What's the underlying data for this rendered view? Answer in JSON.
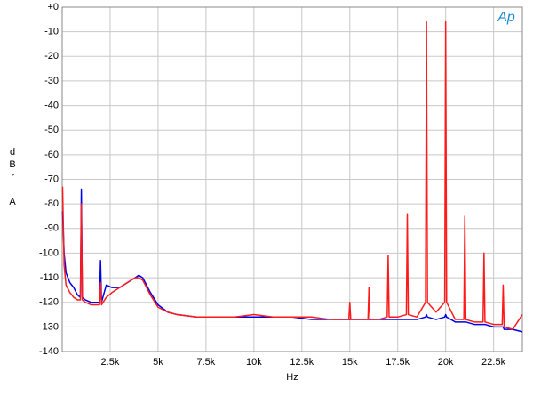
{
  "chart_data": {
    "type": "line",
    "logo": "Ap",
    "x_label": "Hz",
    "y_label": "dBr A",
    "grid": true,
    "xlim": [
      0,
      24000
    ],
    "ylim": [
      -140,
      0
    ],
    "xticks": [
      {
        "value": 2500,
        "label": "2.5k"
      },
      {
        "value": 5000,
        "label": "5k"
      },
      {
        "value": 7500,
        "label": "7.5k"
      },
      {
        "value": 10000,
        "label": "10k"
      },
      {
        "value": 12500,
        "label": "12.5k"
      },
      {
        "value": 15000,
        "label": "15k"
      },
      {
        "value": 17500,
        "label": "17.5k"
      },
      {
        "value": 20000,
        "label": "20k"
      },
      {
        "value": 22500,
        "label": "22.5k"
      }
    ],
    "yticks": [
      {
        "value": 0,
        "label": "+0"
      },
      -10,
      -20,
      -30,
      -40,
      -50,
      -60,
      -70,
      -80,
      -90,
      -100,
      -110,
      -120,
      -130,
      -140
    ],
    "x": [
      20,
      100,
      200,
      400,
      600,
      800,
      950,
      1000,
      1050,
      1200,
      1500,
      1800,
      1950,
      2000,
      2050,
      2300,
      2600,
      3000,
      3400,
      3800,
      4000,
      4200,
      4600,
      5000,
      5500,
      6000,
      7000,
      8000,
      9000,
      10000,
      11000,
      12000,
      13000,
      14000,
      14950,
      15000,
      15050,
      15500,
      15950,
      16000,
      16050,
      16500,
      16950,
      17000,
      17050,
      17500,
      17950,
      18000,
      18050,
      18500,
      18950,
      19000,
      19050,
      19500,
      19950,
      20000,
      20050,
      20500,
      20950,
      21000,
      21050,
      21500,
      21950,
      22000,
      22050,
      22500,
      22950,
      23000,
      23050,
      23500,
      24000
    ],
    "series": [
      {
        "color": "#0000e6",
        "values": [
          -83,
          -100,
          -108,
          -112,
          -114,
          -117,
          -118,
          -74,
          -118,
          -119,
          -120,
          -120,
          -120,
          -103,
          -120,
          -113,
          -114,
          -114,
          -112,
          -110,
          -109,
          -110,
          -116,
          -121,
          -124,
          -125,
          -126,
          -126,
          -126,
          -126,
          -126,
          -126,
          -127,
          -127,
          -127,
          -127,
          -127,
          -127,
          -127,
          -127,
          -127,
          -127,
          -127,
          -127,
          -127,
          -127,
          -127,
          -127,
          -127,
          -127,
          -126,
          -125,
          -126,
          -127,
          -126,
          -125,
          -126,
          -128,
          -128,
          -128,
          -128,
          -129,
          -129,
          -129,
          -129,
          -130,
          -130,
          -130,
          -131,
          -131,
          -132
        ]
      },
      {
        "color": "#ff1a1a",
        "values": [
          -73,
          -105,
          -113,
          -116,
          -118,
          -119,
          -119,
          -80,
          -119,
          -120,
          -121,
          -121,
          -121,
          -112,
          -121,
          -118,
          -116,
          -114,
          -112,
          -110,
          -110,
          -111,
          -117,
          -122,
          -124,
          -125,
          -126,
          -126,
          -126,
          -125,
          -126,
          -126,
          -126,
          -127,
          -127,
          -120,
          -127,
          -127,
          -127,
          -114,
          -127,
          -127,
          -126,
          -101,
          -126,
          -126,
          -125,
          -84,
          -125,
          -126,
          -120,
          -6,
          -120,
          -124,
          -120,
          -6,
          -120,
          -127,
          -127,
          -85,
          -127,
          -128,
          -128,
          -100,
          -128,
          -129,
          -129,
          -113,
          -130,
          -131,
          -125
        ]
      }
    ]
  }
}
